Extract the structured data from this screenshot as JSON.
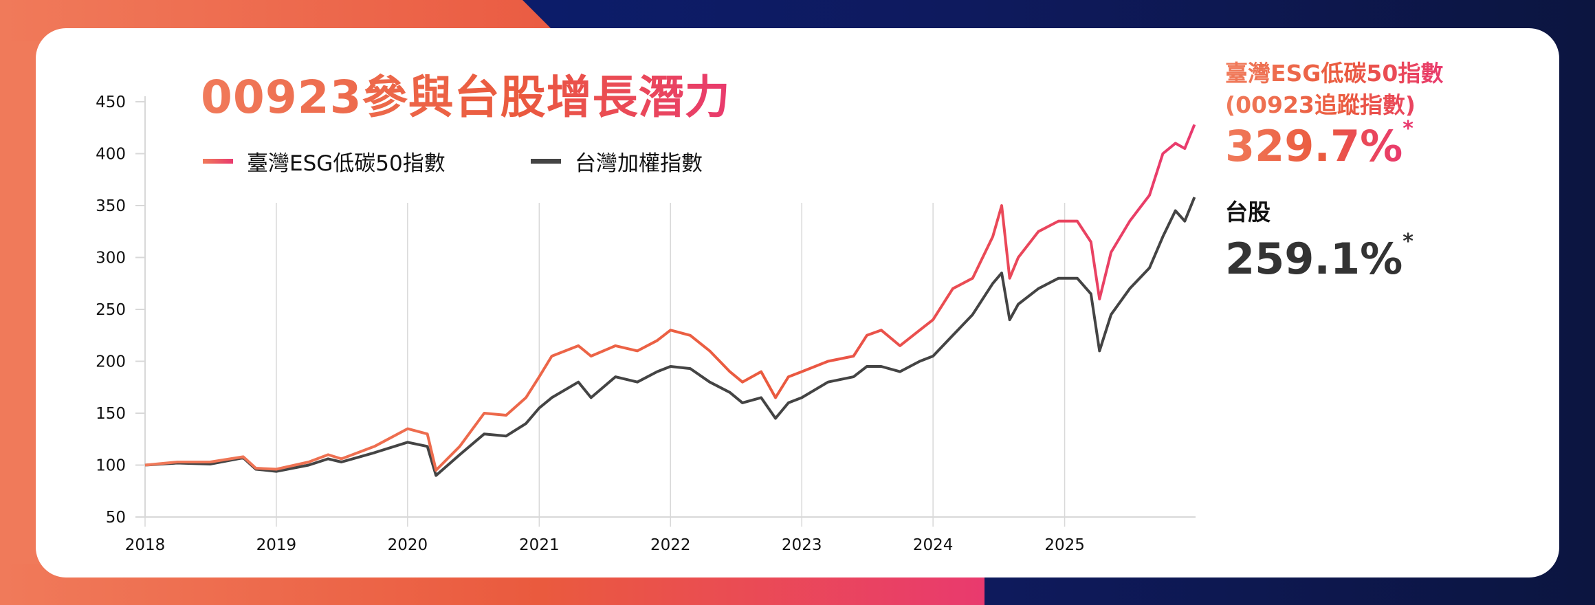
{
  "title": "00923參與台股增長潛力",
  "legend": [
    {
      "label": "臺灣ESG低碳50指數",
      "color": "#ea5a3e"
    },
    {
      "label": "台灣加權指數",
      "color": "#444444"
    }
  ],
  "summary": {
    "esg_label_1": "臺灣ESG低碳50指數",
    "esg_label_2": "(00923追蹤指數)",
    "esg_value": "329.7%",
    "esg_mark": "*",
    "taiex_label": "台股",
    "taiex_value": "259.1%",
    "taiex_mark": "*"
  },
  "colors": {
    "accent_start": "#f07a5a",
    "accent_mid": "#ea5a3e",
    "accent_end": "#e93a6e",
    "dark_line": "#444444",
    "navy": "#0e1a5e"
  },
  "chart_data": {
    "type": "line",
    "title": "",
    "xlabel": "",
    "ylabel": "",
    "ylim": [
      50,
      450
    ],
    "yticks": [
      "50",
      "100",
      "150",
      "200",
      "250",
      "300",
      "350",
      "400",
      "450"
    ],
    "xticks": [
      "2018",
      "2019",
      "2020",
      "2021",
      "2022",
      "2023",
      "2024",
      "2025"
    ],
    "xlim": [
      "2018-01-01",
      "2025-12-31"
    ],
    "grid": "vertical",
    "legend": "top-left",
    "x": [
      "2018-01-01",
      "2018-04-01",
      "2018-07-01",
      "2018-10-01",
      "2018-11-05",
      "2019-01-01",
      "2019-04-01",
      "2019-05-25",
      "2019-07-01",
      "2019-10-01",
      "2020-01-01",
      "2020-02-25",
      "2020-03-20",
      "2020-05-25",
      "2020-08-01",
      "2020-10-01",
      "2020-11-25",
      "2021-01-01",
      "2021-02-05",
      "2021-04-20",
      "2021-05-25",
      "2021-08-01",
      "2021-10-01",
      "2021-11-25",
      "2022-01-01",
      "2022-02-25",
      "2022-04-20",
      "2022-06-15",
      "2022-07-20",
      "2022-09-10",
      "2022-10-20",
      "2022-11-25",
      "2023-01-01",
      "2023-03-15",
      "2023-05-25",
      "2023-07-01",
      "2023-08-10",
      "2023-10-01",
      "2023-11-25",
      "2024-01-01",
      "2024-02-25",
      "2024-04-20",
      "2024-06-15",
      "2024-07-10",
      "2024-08-01",
      "2024-08-25",
      "2024-10-20",
      "2024-12-15",
      "2025-02-05",
      "2025-03-15",
      "2025-04-08",
      "2025-05-10",
      "2025-07-01",
      "2025-08-25",
      "2025-10-01",
      "2025-11-05",
      "2025-12-01",
      "2025-12-28"
    ],
    "series": [
      {
        "name": "臺灣ESG低碳50指數",
        "values": [
          100,
          103,
          103,
          108,
          97,
          96,
          103,
          110,
          106,
          118,
          135,
          130,
          95,
          118,
          150,
          148,
          165,
          185,
          205,
          215,
          205,
          215,
          210,
          220,
          230,
          225,
          210,
          190,
          180,
          190,
          165,
          185,
          190,
          200,
          205,
          225,
          230,
          215,
          230,
          240,
          270,
          280,
          320,
          350,
          280,
          300,
          325,
          335,
          335,
          315,
          260,
          305,
          335,
          360,
          400,
          410,
          405,
          428
        ]
      },
      {
        "name": "台灣加權指數",
        "values": [
          100,
          102,
          101,
          107,
          96,
          94,
          100,
          106,
          103,
          112,
          122,
          118,
          90,
          110,
          130,
          128,
          140,
          155,
          165,
          180,
          165,
          185,
          180,
          190,
          195,
          193,
          180,
          170,
          160,
          165,
          145,
          160,
          165,
          180,
          185,
          195,
          195,
          190,
          200,
          205,
          225,
          245,
          275,
          285,
          240,
          255,
          270,
          280,
          280,
          265,
          210,
          245,
          270,
          290,
          320,
          345,
          335,
          358
        ]
      }
    ]
  }
}
